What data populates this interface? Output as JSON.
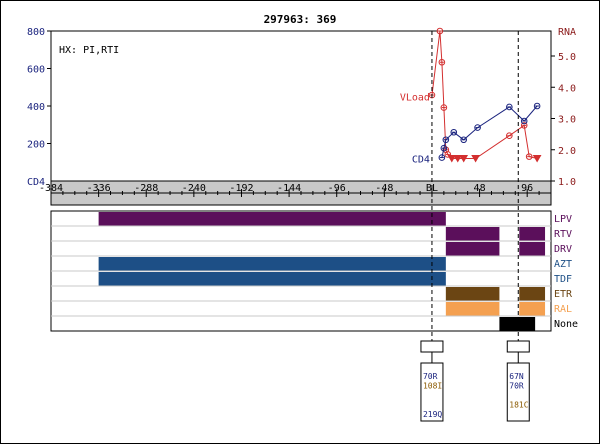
{
  "chart_data": {
    "type": "line",
    "title": "297963: 369",
    "annotation": "HX: PI,RTI",
    "x_axis": {
      "range": [
        -384,
        120
      ],
      "ticks": [
        -384,
        -336,
        -288,
        -240,
        -192,
        -144,
        -96,
        -48,
        0,
        48,
        96
      ],
      "tick_labels": [
        "-384",
        "-336",
        "-288",
        "-240",
        "-192",
        "-144",
        "-96",
        "-48",
        "BL",
        "48",
        "96"
      ]
    },
    "y_left": {
      "label": "CD4",
      "range": [
        0,
        800
      ],
      "ticks": [
        200,
        400,
        600,
        800
      ],
      "tick_labels": [
        "200",
        "400",
        "600",
        "800"
      ],
      "color": "#1a237e"
    },
    "y_right": {
      "label": "RNA",
      "range": [
        1.0,
        5.8
      ],
      "ticks": [
        1.0,
        2.0,
        3.0,
        4.0,
        5.0
      ],
      "tick_labels": [
        "1.0",
        "2.0",
        "3.0",
        "4.0",
        "5.0"
      ],
      "color": "#8b1a1a"
    },
    "grid": false,
    "series": [
      {
        "name": "VLoad",
        "axis": "right",
        "color": "#d32f2f",
        "label_at": [
          -2,
          3.7
        ],
        "points": [
          {
            "x": 0,
            "y": 3.75
          },
          {
            "x": 8,
            "y": 5.8
          },
          {
            "x": 10,
            "y": 4.8
          },
          {
            "x": 12,
            "y": 3.35
          },
          {
            "x": 14,
            "y": 2.0
          },
          {
            "x": 16,
            "y": 1.85
          },
          {
            "x": 20,
            "y": 1.72,
            "below_limit": true
          },
          {
            "x": 26,
            "y": 1.72,
            "below_limit": true
          },
          {
            "x": 32,
            "y": 1.72,
            "below_limit": true
          },
          {
            "x": 44,
            "y": 1.72,
            "below_limit": true
          },
          {
            "x": 78,
            "y": 2.45
          },
          {
            "x": 93,
            "y": 2.78
          },
          {
            "x": 98,
            "y": 1.78
          },
          {
            "x": 106,
            "y": 1.72,
            "below_limit": true
          }
        ]
      },
      {
        "name": "CD4",
        "axis": "left",
        "color": "#1a237e",
        "label_at": [
          -2,
          120
        ],
        "points": [
          {
            "x": 10,
            "y": 125
          },
          {
            "x": 12,
            "y": 175
          },
          {
            "x": 14,
            "y": 220
          },
          {
            "x": 22,
            "y": 260
          },
          {
            "x": 32,
            "y": 220
          },
          {
            "x": 46,
            "y": 285
          },
          {
            "x": 78,
            "y": 395
          },
          {
            "x": 93,
            "y": 320
          },
          {
            "x": 106,
            "y": 400
          }
        ]
      }
    ],
    "reference_lines": [
      0,
      87
    ]
  },
  "regimen": {
    "rows": [
      {
        "label": "LPV",
        "color": "#5b0f5b",
        "segments": [
          [
            -336,
            14
          ]
        ]
      },
      {
        "label": "RTV",
        "color": "#5b0f5b",
        "segments": [
          [
            14,
            68
          ],
          [
            88,
            114
          ]
        ]
      },
      {
        "label": "DRV",
        "color": "#5b0f5b",
        "segments": [
          [
            14,
            68
          ],
          [
            88,
            114
          ]
        ]
      },
      {
        "label": "AZT",
        "color": "#1d4f86",
        "segments": [
          [
            -336,
            14
          ]
        ]
      },
      {
        "label": "TDF",
        "color": "#1d4f86",
        "segments": [
          [
            -336,
            14
          ]
        ]
      },
      {
        "label": "ETR",
        "color": "#6b4513",
        "segments": [
          [
            14,
            68
          ],
          [
            88,
            114
          ]
        ]
      },
      {
        "label": "RAL",
        "color": "#f4a050",
        "segments": [
          [
            14,
            68
          ],
          [
            88,
            114
          ]
        ]
      },
      {
        "label": "None",
        "color": "#000000",
        "segments": [
          [
            68,
            104
          ]
        ]
      }
    ]
  },
  "mutations": [
    {
      "x": 0,
      "entries": [
        {
          "text": "70R",
          "color": "#1a237e",
          "row": 0
        },
        {
          "text": "108I",
          "color": "#8b5a00",
          "row": 1
        },
        {
          "text": "219Q",
          "color": "#1a237e",
          "row": 4
        }
      ]
    },
    {
      "x": 87,
      "entries": [
        {
          "text": "67N",
          "color": "#1a237e",
          "row": 0
        },
        {
          "text": "70R",
          "color": "#1a237e",
          "row": 1
        },
        {
          "text": "181C",
          "color": "#8b5a00",
          "row": 3
        }
      ]
    }
  ]
}
